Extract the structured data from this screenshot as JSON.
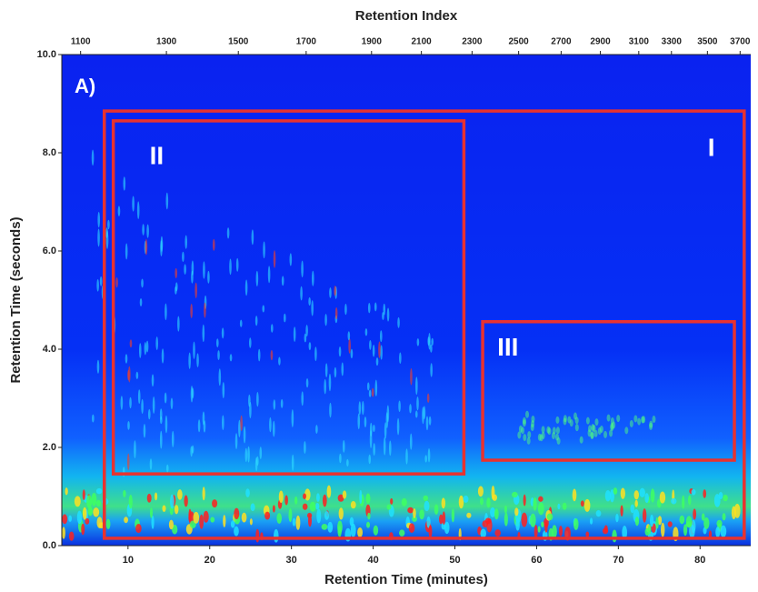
{
  "chart_data": {
    "type": "heatmap",
    "panel_label": "A)",
    "xlabel": "Retention Time (minutes)",
    "ylabel": "Retention Time (seconds)",
    "x2label": "Retention Index",
    "xlim": [
      1.9,
      86.2
    ],
    "xticks": [
      10,
      20,
      30,
      40,
      50,
      60,
      70,
      80
    ],
    "ylim": [
      0,
      10
    ],
    "yticks": [
      {
        "value": 0,
        "label": "0.0"
      },
      {
        "value": 2,
        "label": "2.0"
      },
      {
        "value": 4,
        "label": "4.0"
      },
      {
        "value": 6,
        "label": "6.0"
      },
      {
        "value": 8,
        "label": "8.0"
      },
      {
        "value": 10,
        "label": "10.0"
      }
    ],
    "x2ticks": [
      {
        "value": 4.2,
        "label": "1100"
      },
      {
        "value": 14.7,
        "label": "1300"
      },
      {
        "value": 23.5,
        "label": "1500"
      },
      {
        "value": 31.8,
        "label": "1700"
      },
      {
        "value": 39.8,
        "label": "1900"
      },
      {
        "value": 45.9,
        "label": "2100"
      },
      {
        "value": 52.1,
        "label": "2300"
      },
      {
        "value": 57.8,
        "label": "2500"
      },
      {
        "value": 63.0,
        "label": "2700"
      },
      {
        "value": 67.8,
        "label": "2900"
      },
      {
        "value": 72.5,
        "label": "3100"
      },
      {
        "value": 76.5,
        "label": "3300"
      },
      {
        "value": 80.9,
        "label": "3500"
      },
      {
        "value": 84.9,
        "label": "3700"
      }
    ],
    "regions": [
      {
        "label": "I",
        "color": "#e8322f",
        "xlim": [
          7.1,
          85.4
        ],
        "ylim": [
          0.15,
          8.85
        ]
      },
      {
        "label": "II",
        "color": "#e8322f",
        "xlim": [
          8.2,
          51.1
        ],
        "ylim": [
          1.46,
          8.65
        ]
      },
      {
        "label": "III",
        "color": "#e8322f",
        "xlim": [
          53.4,
          84.2
        ],
        "ylim": [
          1.74,
          4.56
        ]
      }
    ]
  }
}
